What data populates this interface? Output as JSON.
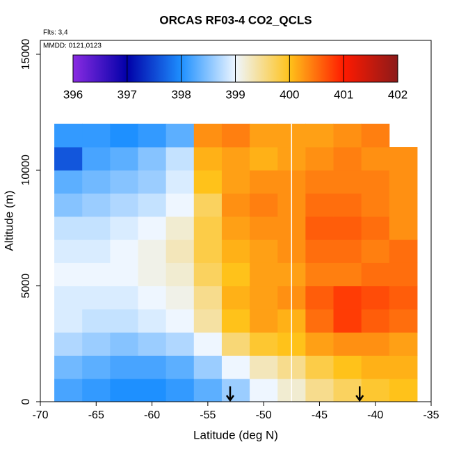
{
  "chart_data": {
    "type": "heatmap",
    "title": "ORCAS RF03-4 CO2_QCLS",
    "annotations": [
      "Flts: 3,4",
      "MMDD: 0121,0123"
    ],
    "x_label": "Latitude (deg N)",
    "y_label": "Altitude (m)",
    "xlim": [
      -70,
      -35
    ],
    "xticks": [
      -70,
      -65,
      -60,
      -55,
      -50,
      -45,
      -40,
      -35
    ],
    "ylim": [
      0,
      15600
    ],
    "yticks": [
      0,
      5000,
      10000,
      15000
    ],
    "x": [
      -67.5,
      -65,
      -62.5,
      -60,
      -57.5,
      -55,
      -52.5,
      -50,
      -47.5,
      -45,
      -42.5,
      -40,
      -37.5
    ],
    "y": [
      500,
      1500,
      2500,
      3500,
      4500,
      5500,
      6500,
      7500,
      8500,
      9500,
      10500,
      11500
    ],
    "z": [
      [
        398.2,
        398.1,
        398.0,
        398.0,
        398.1,
        398.3,
        398.6,
        399.0,
        399.2,
        399.5,
        399.7,
        399.9,
        400.0
      ],
      [
        398.4,
        398.3,
        398.2,
        398.2,
        398.3,
        398.6,
        399.0,
        399.3,
        399.5,
        399.8,
        400.0,
        400.1,
        400.1
      ],
      [
        398.7,
        398.6,
        398.5,
        398.6,
        398.7,
        399.0,
        399.6,
        399.9,
        400.0,
        400.2,
        400.3,
        400.3,
        400.2
      ],
      [
        398.9,
        398.8,
        398.8,
        398.9,
        399.0,
        399.4,
        400.0,
        400.2,
        400.1,
        400.5,
        400.8,
        400.6,
        400.5
      ],
      [
        398.9,
        398.9,
        398.9,
        399.0,
        399.1,
        399.5,
        400.1,
        400.2,
        400.3,
        400.6,
        400.8,
        400.7,
        400.6
      ],
      [
        399.0,
        399.0,
        399.0,
        399.1,
        399.2,
        399.7,
        400.0,
        400.2,
        400.2,
        400.4,
        400.4,
        400.5,
        400.5
      ],
      [
        398.9,
        398.9,
        399.0,
        399.1,
        399.3,
        399.8,
        400.1,
        400.2,
        400.3,
        400.5,
        400.5,
        400.4,
        400.5
      ],
      [
        398.8,
        398.8,
        398.9,
        399.0,
        399.2,
        399.8,
        400.2,
        400.3,
        400.3,
        400.6,
        400.6,
        400.5,
        400.3
      ],
      [
        398.5,
        398.6,
        398.7,
        398.8,
        399.0,
        399.7,
        400.3,
        400.4,
        400.3,
        400.5,
        400.5,
        400.4,
        400.3
      ],
      [
        398.3,
        398.4,
        398.5,
        398.6,
        398.9,
        400.0,
        400.2,
        400.3,
        400.3,
        400.4,
        400.4,
        400.4,
        400.3
      ],
      [
        397.6,
        398.2,
        398.3,
        398.5,
        398.8,
        400.1,
        400.2,
        400.1,
        400.2,
        400.3,
        400.4,
        400.3,
        400.3
      ],
      [
        398.1,
        398.1,
        398.0,
        398.1,
        398.3,
        400.3,
        400.4,
        400.2,
        400.2,
        400.2,
        400.3,
        400.4,
        null
      ]
    ],
    "colorscale": [
      {
        "value": 396,
        "color": "#8a2be2"
      },
      {
        "value": 397,
        "color": "#0000a8"
      },
      {
        "value": 398,
        "color": "#1e90ff"
      },
      {
        "value": 399,
        "color": "#eef6ff"
      },
      {
        "value": 400,
        "color": "#ffc21a"
      },
      {
        "value": 401,
        "color": "#ff1a00"
      },
      {
        "value": 402,
        "color": "#8b1a1a"
      }
    ],
    "colorbar_ticks": [
      396,
      397,
      398,
      399,
      400,
      401,
      402
    ],
    "vline_x": -47.5,
    "arrows_x": [
      -53,
      -41.4
    ]
  }
}
